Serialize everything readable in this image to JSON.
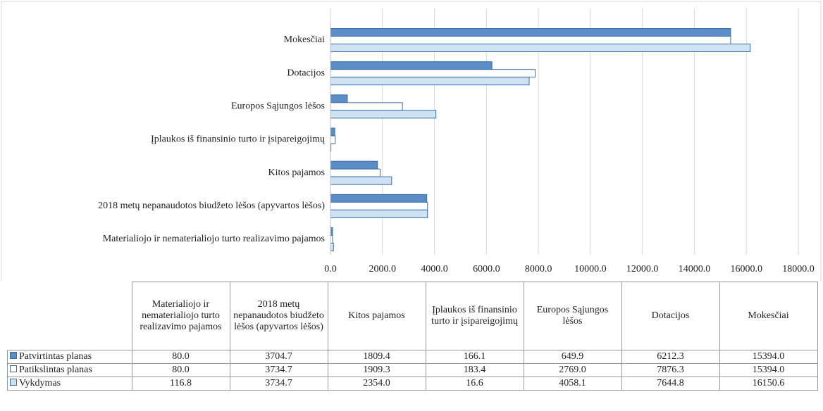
{
  "chart_data": {
    "type": "hbar",
    "categories": [
      "Materialiojo ir nematerialiojo turto realizavimo pajamos",
      "2018 metų nepanaudotos biudžeto lėšos (apyvartos lėšos)",
      "Kitos pajamos",
      "Įplaukos iš finansinio turto ir įsipareigojimų",
      "Europos Sąjungos lėšos",
      "Dotacijos",
      "Mokesčiai"
    ],
    "series": [
      {
        "name": "Patvirtintas planas",
        "color": "#5b8ec6",
        "values": [
          80.0,
          3704.7,
          1809.4,
          166.1,
          649.9,
          6212.3,
          15394.0
        ],
        "value_labels": [
          "80.0",
          "3704.7",
          "1809.4",
          "166.1",
          "649.9",
          "6212.3",
          "15394.0"
        ]
      },
      {
        "name": "Patikslintas planas",
        "color": "#ffffff",
        "values": [
          80.0,
          3734.7,
          1909.3,
          183.4,
          2769.0,
          7876.3,
          15394.0
        ],
        "value_labels": [
          "80.0",
          "3734.7",
          "1909.3",
          "183.4",
          "2769.0",
          "7876.3",
          "15394.0"
        ]
      },
      {
        "name": "Vykdymas",
        "color": "#cfe2f3",
        "values": [
          116.8,
          3734.7,
          2354.0,
          16.6,
          4058.1,
          7644.8,
          16150.6
        ],
        "value_labels": [
          "116.8",
          "3734.7",
          "2354.0",
          "16.6",
          "4058.1",
          "7644.8",
          "16150.6"
        ]
      }
    ],
    "xlim": [
      0,
      18000
    ],
    "xticks": [
      {
        "value": 0,
        "label": "0.0"
      },
      {
        "value": 2000,
        "label": "2000.0"
      },
      {
        "value": 4000,
        "label": "4000.0"
      },
      {
        "value": 6000,
        "label": "6000.0"
      },
      {
        "value": 8000,
        "label": "8000.0"
      },
      {
        "value": 10000,
        "label": "10000.0"
      },
      {
        "value": 12000,
        "label": "12000.0"
      },
      {
        "value": 14000,
        "label": "14000.0"
      },
      {
        "value": 16000,
        "label": "16000.0"
      },
      {
        "value": 18000,
        "label": "18000.0"
      }
    ],
    "grid": true
  }
}
